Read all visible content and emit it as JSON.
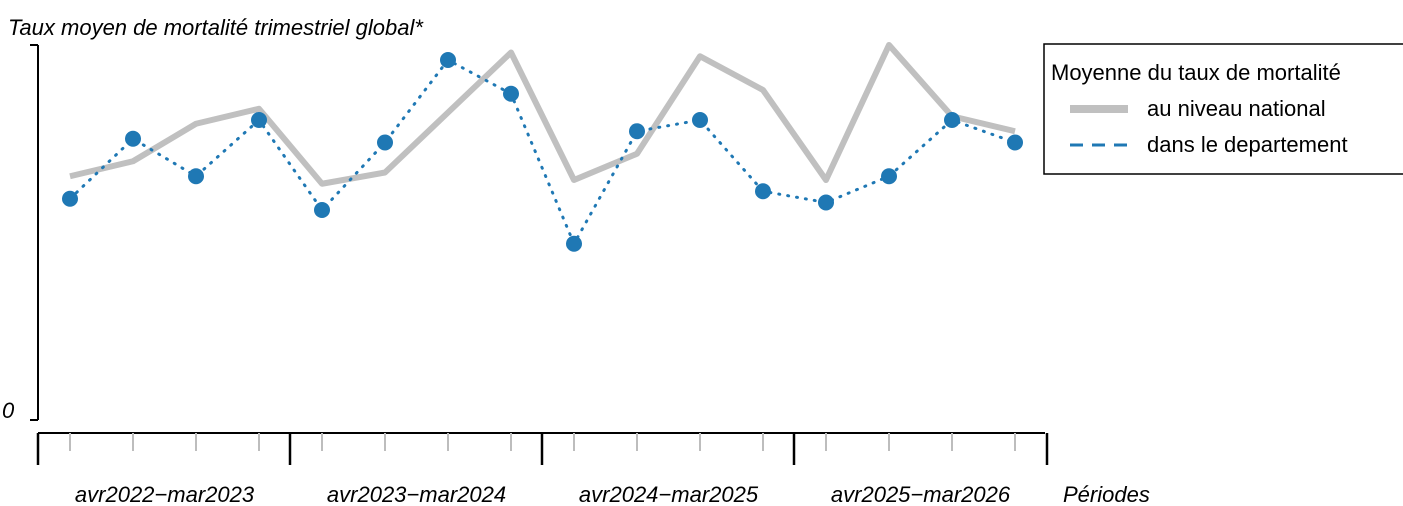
{
  "chart_data": {
    "type": "line",
    "title": "Taux moyen de mortalité trimestriel global*",
    "xlabel": "Périodes",
    "ylabel": "",
    "y_tick_labels": [
      "0"
    ],
    "y_range": [
      0,
      1.0
    ],
    "grid": false,
    "x": [
      1,
      2,
      3,
      4,
      5,
      6,
      7,
      8,
      9,
      10,
      11,
      12,
      13,
      14,
      15,
      16
    ],
    "period_groups": [
      "avr2022−mar2023",
      "avr2023−mar2024",
      "avr2024−mar2025",
      "avr2025−mar2026"
    ],
    "series": [
      {
        "name": "au niveau national",
        "style": "solid-thick",
        "color": "#c0c0c0",
        "values": [
          0.65,
          0.69,
          0.79,
          0.83,
          0.63,
          0.66,
          0.82,
          0.98,
          0.64,
          0.71,
          0.97,
          0.88,
          0.64,
          1.0,
          0.81,
          0.77
        ]
      },
      {
        "name": "dans le departement",
        "style": "dotted-with-points",
        "color": "#1f78b4",
        "values": [
          0.59,
          0.75,
          0.65,
          0.8,
          0.56,
          0.74,
          0.96,
          0.87,
          0.47,
          0.77,
          0.8,
          0.61,
          0.58,
          0.65,
          0.8,
          0.74
        ]
      }
    ],
    "legend": {
      "title": "Moyenne du taux de mortalité",
      "position": "top-right",
      "entries": [
        "au niveau national",
        "dans le departement"
      ]
    }
  }
}
